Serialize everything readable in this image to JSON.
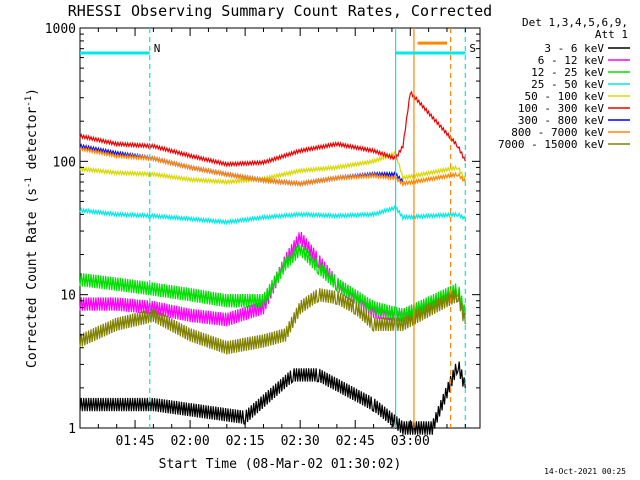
{
  "chart_data": {
    "type": "line",
    "title": "RHESSI Observing Summary Count Rates, Corrected",
    "xlabel": "Start Time (08-Mar-02 01:30:02)",
    "ylabel_prefix": "Corrected Count Rate (s",
    "ylabel_sup": "-1",
    "ylabel_mid": " detector",
    "ylabel_sup2": "-1",
    "ylabel_suffix": ")",
    "y_scale": "log",
    "ylim": [
      1,
      1000
    ],
    "xlim_minutes_after_start": [
      0,
      109
    ],
    "x_ticks": [
      {
        "label": "01:45",
        "minute": 15
      },
      {
        "label": "02:00",
        "minute": 30
      },
      {
        "label": "02:15",
        "minute": 45
      },
      {
        "label": "02:30",
        "minute": 60
      },
      {
        "label": "02:45",
        "minute": 75
      },
      {
        "label": "03:00",
        "minute": 90
      }
    ],
    "y_ticks": [
      {
        "label": "1",
        "value": 1
      },
      {
        "label": "10",
        "value": 10
      },
      {
        "label": "100",
        "value": 100
      },
      {
        "label": "1000",
        "value": 1000
      }
    ],
    "legend_header": [
      "Det 1,3,4,5,6,9,",
      "Att 1"
    ],
    "legend_placement": "right",
    "series": [
      {
        "name": "3 - 6 keV",
        "color": "#000000",
        "x": [
          0,
          20,
          45,
          58,
          65,
          80,
          88,
          96,
          103,
          105
        ],
        "y": [
          1.5,
          1.5,
          1.2,
          2.5,
          2.5,
          1.5,
          1,
          1,
          3,
          2
        ]
      },
      {
        "name": "6 - 12 keV",
        "color": "#ff00ff",
        "x": [
          0,
          10,
          20,
          30,
          40,
          50,
          56,
          60,
          65,
          70,
          80,
          88,
          103,
          105
        ],
        "y": [
          8.5,
          8.5,
          8,
          7,
          6.5,
          8,
          18,
          27,
          18,
          12,
          7.5,
          7,
          10,
          7
        ]
      },
      {
        "name": "12 - 25 keV",
        "color": "#00dd00",
        "x": [
          0,
          10,
          20,
          30,
          40,
          50,
          56,
          60,
          65,
          70,
          80,
          88,
          103,
          105
        ],
        "y": [
          13,
          12,
          11,
          10,
          9,
          9,
          17,
          22,
          16,
          12,
          8,
          7,
          11,
          7
        ]
      },
      {
        "name": "25 - 50 keV",
        "color": "#00e8e8",
        "x": [
          0,
          10,
          20,
          30,
          40,
          50,
          60,
          70,
          80,
          86,
          88,
          103,
          105
        ],
        "y": [
          43,
          40,
          39,
          37,
          35,
          38,
          40,
          39,
          40,
          45,
          38,
          40,
          37
        ]
      },
      {
        "name": "50 - 100 keV",
        "color": "#d8d800",
        "x": [
          0,
          10,
          20,
          30,
          40,
          50,
          60,
          70,
          80,
          86,
          88,
          103,
          105
        ],
        "y": [
          88,
          82,
          80,
          73,
          70,
          74,
          85,
          90,
          100,
          115,
          75,
          90,
          72
        ]
      },
      {
        "name": "100 - 300 keV",
        "color": "#ee0000",
        "x": [
          0,
          10,
          20,
          30,
          40,
          50,
          60,
          70,
          80,
          86,
          88,
          90,
          103,
          105
        ],
        "y": [
          155,
          135,
          130,
          110,
          95,
          98,
          120,
          135,
          120,
          105,
          130,
          330,
          130,
          100
        ]
      },
      {
        "name": "300 - 800 keV",
        "color": "#0000ff",
        "x": [
          0,
          10,
          20,
          30,
          40,
          50,
          60,
          70,
          80,
          86,
          88
        ],
        "y": [
          130,
          115,
          105,
          90,
          80,
          72,
          68,
          75,
          80,
          80,
          70
        ]
      },
      {
        "name": "800 - 7000 keV",
        "color": "#ff8800",
        "x": [
          0,
          10,
          20,
          30,
          40,
          50,
          60,
          70,
          80,
          86,
          88,
          103,
          105
        ],
        "y": [
          125,
          110,
          105,
          90,
          80,
          72,
          68,
          75,
          78,
          75,
          68,
          80,
          70
        ]
      },
      {
        "name": "7000 - 15000 keV",
        "color": "#808000",
        "x": [
          0,
          10,
          20,
          30,
          40,
          50,
          56,
          60,
          65,
          70,
          75,
          80,
          88,
          103,
          105
        ],
        "y": [
          4.5,
          6,
          7,
          5,
          4,
          4.5,
          5,
          8,
          10,
          9.5,
          8,
          6,
          6,
          10,
          6
        ]
      }
    ],
    "bars": [
      {
        "label": "N",
        "color": "#00e8e8",
        "x_start": 0,
        "x_end": 19,
        "y": 650
      },
      {
        "label": "S",
        "color": "#00e8e8",
        "x_start": 86,
        "x_end": 105,
        "y": 650
      },
      {
        "label": "",
        "color": "#ff8800",
        "x_start": 92,
        "x_end": 100,
        "y": 770
      }
    ],
    "vlines": [
      {
        "x": 19,
        "color": "#00e8e8",
        "style": "dashed"
      },
      {
        "x": 86,
        "color": "#00e8e8",
        "style": "solid"
      },
      {
        "x": 91,
        "color": "#ff8800",
        "style": "solid"
      },
      {
        "x": 101,
        "color": "#ff8800",
        "style": "dashed"
      },
      {
        "x": 105,
        "color": "#00e8e8",
        "style": "dashed"
      }
    ],
    "footer_timestamp": "14-Oct-2021 00:25"
  }
}
